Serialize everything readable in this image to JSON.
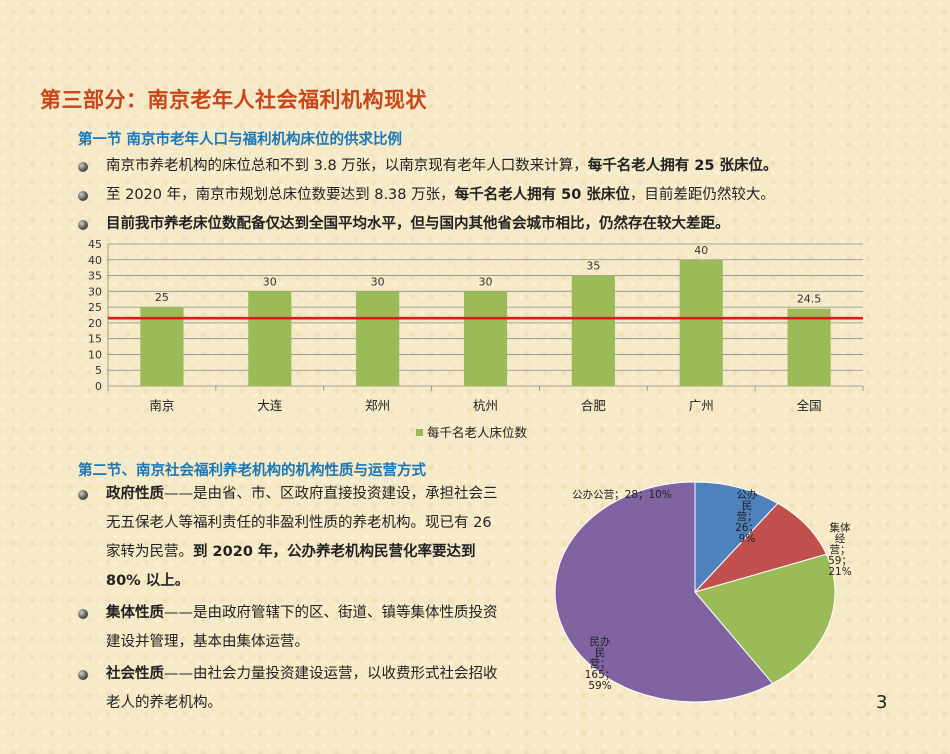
{
  "title": "第三部分：南京老年人社会福利机构现状",
  "section1": {
    "heading": "第一节  南京市老年人口与福利机构床位的供求比例",
    "bullets": [
      {
        "pre": "南京市养老机构的床位总和不到 3.8 万张，以南京现有老年人口数来计算，",
        "bold": "每千名老人拥有 25 张床位。",
        "post": ""
      },
      {
        "pre": "至 2020 年，南京市规划总床位数要达到 8.38 万张，",
        "bold": "每千名老人拥有 50 张床位",
        "post": "，目前差距仍然较大。"
      },
      {
        "pre": "",
        "bold": "目前我市养老床位数配备仅达到全国平均水平，但与国内其他省会城市相比，仍然存在较大差距。",
        "post": ""
      }
    ]
  },
  "chart_data": [
    {
      "type": "bar",
      "categories": [
        "南京",
        "大连",
        "郑州",
        "杭州",
        "合肥",
        "广州",
        "全国"
      ],
      "series": [
        {
          "name": "每千名老人床位数",
          "values": [
            25,
            30,
            30,
            30,
            35,
            40,
            24.5
          ]
        }
      ],
      "data_labels": [
        "25",
        "30",
        "30",
        "30",
        "35",
        "40",
        "24.5"
      ],
      "ylim": [
        0,
        45
      ],
      "yticks": [
        0,
        5,
        10,
        15,
        20,
        25,
        30,
        35,
        40,
        45
      ],
      "reference_line": 21.5,
      "legend_position": "bottom",
      "colors": {
        "bar": "#9bbb59",
        "reference_line": "#e0191b"
      }
    },
    {
      "type": "pie",
      "slices": [
        {
          "label": "公办公营",
          "value": 28,
          "percent": "10%",
          "color": "#4f81bd",
          "text_lines": [
            "公办公营；28；10%"
          ]
        },
        {
          "label": "公办民营",
          "value": 26,
          "percent": "9%",
          "color": "#c0504d",
          "text_lines": [
            "公办",
            "民",
            "营；",
            "26；",
            "9%"
          ]
        },
        {
          "label": "集体经营",
          "value": 59,
          "percent": "21%",
          "color": "#9bbb59",
          "text_lines": [
            "集体",
            "经",
            "营；",
            "59；",
            "21%"
          ]
        },
        {
          "label": "民办民营",
          "value": 165,
          "percent": "59%",
          "color": "#8064a2",
          "text_lines": [
            "民办",
            "民",
            "营；",
            "165；",
            "59%"
          ]
        }
      ]
    }
  ],
  "section2": {
    "heading": "第二节、南京社会福利养老机构的机构性质与运营方式",
    "items": [
      {
        "term": "政府性质",
        "text": "——是由省、市、区政府直接投资建设，承担社会三无五保老人等福利责任的非盈利性质的养老机构。现已有 26 家转为民营。",
        "bold": "到 2020 年，公办养老机构民营化率要达到 80% 以上。"
      },
      {
        "term": "集体性质",
        "text": "——是由政府管辖下的区、街道、镇等集体性质投资建设并管理，基本由集体运营。",
        "bold": ""
      },
      {
        "term": "社会性质",
        "text": "——由社会力量投资建设运营，以收费形式社会招收老人的养老机构。",
        "bold": ""
      }
    ]
  },
  "page_number": "3"
}
